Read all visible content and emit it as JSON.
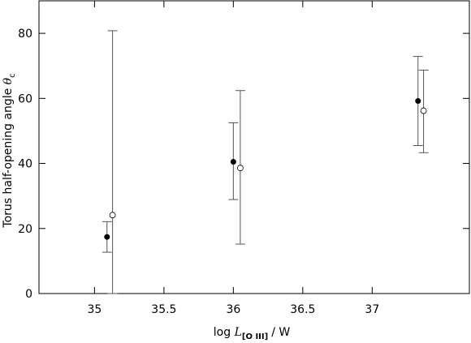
{
  "chart_data": {
    "type": "scatter",
    "x_label": {
      "prefix": "log",
      "symbol": "L",
      "subscript": "[O III]",
      "suffix": "/ W"
    },
    "y_label": {
      "text": "Torus half-opening angle",
      "symbol": "θ",
      "subscript": "c",
      "superscript": "°"
    },
    "xlim": [
      34.6,
      37.7
    ],
    "ylim": [
      0,
      90
    ],
    "xticks": [
      35,
      35.5,
      36,
      36.5,
      37
    ],
    "yticks": [
      0,
      20,
      40,
      60,
      80
    ],
    "errorbar_color": "#555555",
    "series": [
      {
        "marker": "filled",
        "color": "#000000",
        "x": [
          35.09,
          36.0,
          37.33
        ],
        "values": [
          17.4,
          40.5,
          59.2
        ],
        "y_low": [
          12.7,
          28.9,
          45.5
        ],
        "y_high": [
          22.1,
          52.5,
          72.9
        ]
      },
      {
        "marker": "open",
        "color": "#000000",
        "x": [
          35.13,
          36.05,
          37.37
        ],
        "values": [
          24.1,
          38.6,
          56.2
        ],
        "y_low": [
          0,
          15.2,
          43.3
        ],
        "y_high": [
          80.8,
          62.4,
          68.7
        ]
      }
    ]
  }
}
